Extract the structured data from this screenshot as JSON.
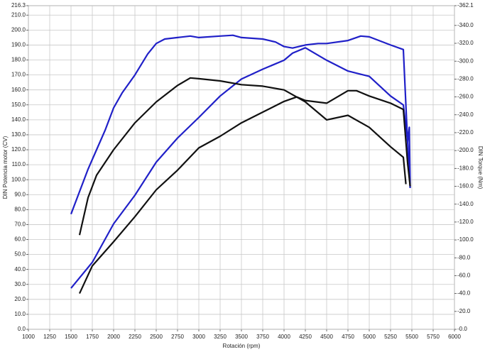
{
  "chart_data": {
    "type": "line",
    "xlabel": "Rotación (rpm)",
    "ylabel": "DIN Potencia motor (CV)",
    "y2label": "DIN Torque (Nm)",
    "xlim": [
      1000,
      6000
    ],
    "xticks": [
      1000,
      1250,
      1500,
      1750,
      2000,
      2250,
      2500,
      2750,
      3000,
      3250,
      3500,
      3750,
      4000,
      4250,
      4500,
      4750,
      5000,
      5250,
      5500,
      5750,
      6000
    ],
    "ylim": [
      0,
      216.3
    ],
    "yticks": [
      {
        "value": 0,
        "label": "0.0"
      },
      {
        "value": 10,
        "label": "10.0"
      },
      {
        "value": 20,
        "label": "20.0"
      },
      {
        "value": 30,
        "label": "30.0"
      },
      {
        "value": 40,
        "label": "40.0"
      },
      {
        "value": 50,
        "label": "50.0"
      },
      {
        "value": 60,
        "label": "60.0"
      },
      {
        "value": 70,
        "label": "70.0"
      },
      {
        "value": 80,
        "label": "80.0"
      },
      {
        "value": 90,
        "label": "90.0"
      },
      {
        "value": 100,
        "label": "100.0"
      },
      {
        "value": 110,
        "label": "110.0"
      },
      {
        "value": 120,
        "label": "120.0"
      },
      {
        "value": 130,
        "label": "130.0"
      },
      {
        "value": 140,
        "label": "140.0"
      },
      {
        "value": 150,
        "label": "150.0"
      },
      {
        "value": 160,
        "label": "160.0"
      },
      {
        "value": 170,
        "label": "170.0"
      },
      {
        "value": 180,
        "label": "180.0"
      },
      {
        "value": 190,
        "label": "190.0"
      },
      {
        "value": 200,
        "label": "200.0"
      },
      {
        "value": 210,
        "label": "210.0"
      },
      216.3
    ],
    "y2lim": [
      0,
      362.1
    ],
    "y2ticks": [
      {
        "value": 0,
        "label": "-0.0"
      },
      {
        "value": 20,
        "label": "-20.0"
      },
      {
        "value": 40,
        "label": "-40.0"
      },
      {
        "value": 60,
        "label": "-60.0"
      },
      {
        "value": 80,
        "label": "-80.0"
      },
      {
        "value": 100,
        "label": "-100.0"
      },
      {
        "value": 120,
        "label": "-120.0"
      },
      {
        "value": 140,
        "label": "-140.0"
      },
      {
        "value": 160,
        "label": "-160.0"
      },
      {
        "value": 180,
        "label": "-180.0"
      },
      {
        "value": 200,
        "label": "-200.0"
      },
      {
        "value": 220,
        "label": "-220.0"
      },
      {
        "value": 240,
        "label": "-240.0"
      },
      {
        "value": 260,
        "label": "-260.0"
      },
      {
        "value": 280,
        "label": "-280.0"
      },
      {
        "value": 300,
        "label": "-300.0"
      },
      {
        "value": 320,
        "label": "-320.0"
      },
      {
        "value": 340,
        "label": "-340.0"
      },
      {
        "value": 362.1,
        "label": "-362.1"
      }
    ],
    "grid": true,
    "series": [
      {
        "color": "#2020c8",
        "x": [
          1500,
          1600,
          1700,
          1800,
          1900,
          2000,
          2100,
          2250,
          2400,
          2500,
          2600,
          2750,
          2900,
          3000,
          3250,
          3400,
          3500,
          3750,
          3900,
          4000,
          4100,
          4250,
          4400,
          4500,
          4750,
          4900,
          5000,
          5250,
          5400,
          5450,
          5470,
          5480
        ],
        "values": [
          77,
          92,
          107,
          120,
          133,
          148,
          158,
          170,
          184,
          191,
          194,
          195,
          196,
          195,
          196,
          196.5,
          195,
          194,
          192,
          189,
          188,
          190,
          191,
          191,
          193,
          196,
          195.5,
          190,
          187,
          125,
          135,
          95
        ]
      },
      {
        "color": "#2020c8",
        "axis": "y2",
        "x": [
          1500,
          1750,
          2000,
          2250,
          2500,
          2750,
          3000,
          3250,
          3500,
          3750,
          4000,
          4100,
          4250,
          4500,
          4750,
          5000,
          5250,
          5400,
          5450,
          5480
        ],
        "values": [
          46,
          75,
          118,
          150,
          187,
          214,
          237,
          261,
          280,
          291,
          301,
          309,
          315,
          301,
          289,
          283,
          261,
          251,
          210,
          158
        ]
      },
      {
        "color": "#111111",
        "x": [
          1600,
          1700,
          1800,
          2000,
          2250,
          2500,
          2750,
          2900,
          3000,
          3250,
          3500,
          3750,
          4000,
          4250,
          4500,
          4750,
          5000,
          5250,
          5400,
          5430
        ],
        "values": [
          63,
          88,
          103,
          120,
          138,
          152,
          163,
          168,
          167.5,
          166,
          163.5,
          162.5,
          160,
          152,
          140,
          143,
          135,
          122,
          115,
          97
        ]
      },
      {
        "color": "#111111",
        "axis": "y2",
        "x": [
          1600,
          1750,
          2000,
          2250,
          2500,
          2750,
          3000,
          3250,
          3500,
          3750,
          4000,
          4150,
          4250,
          4500,
          4750,
          4850,
          5000,
          5250,
          5400,
          5450,
          5480
        ],
        "values": [
          40,
          71,
          98,
          126,
          156,
          178,
          203,
          216,
          231,
          243,
          255,
          260,
          256,
          253,
          267,
          267,
          261,
          253,
          246,
          186,
          160
        ]
      }
    ]
  }
}
